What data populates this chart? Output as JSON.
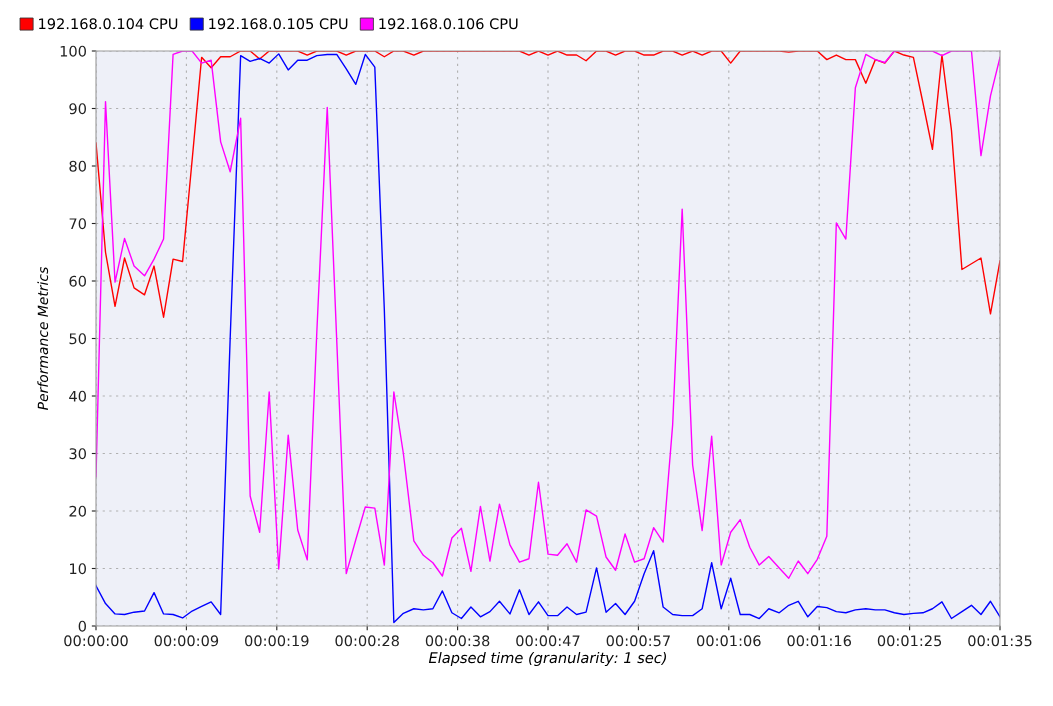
{
  "chart_data": {
    "type": "line",
    "xlabel": "Elapsed time (granularity: 1 sec)",
    "ylabel": "Performance Metrics",
    "x": [
      0,
      1,
      2,
      3,
      4,
      5.1,
      6.1,
      7.1,
      8.1,
      9.1,
      10.1,
      11.1,
      12.1,
      13.1,
      14.1,
      15.2,
      16.2,
      17.2,
      18.2,
      19.2,
      20.2,
      21.2,
      22.2,
      23.2,
      24.3,
      25.3,
      26.3,
      27.3,
      28.3,
      29.3,
      30.3,
      31.3,
      32.3,
      33.4,
      34.4,
      35.4,
      36.4,
      37.4,
      38.4,
      39.4,
      40.4,
      41.4,
      42.4,
      43.5,
      44.5,
      45.5,
      46.5,
      47.5,
      48.5,
      49.5,
      50.5,
      51.5,
      52.6,
      53.6,
      54.6,
      55.6,
      56.6,
      57.6,
      58.6,
      59.6,
      60.6,
      61.6,
      62.7,
      63.7,
      64.7,
      65.7,
      66.7,
      67.7,
      68.7,
      69.7,
      70.7,
      71.8,
      72.8,
      73.8,
      74.8,
      75.8,
      76.8,
      77.8,
      78.8,
      79.8,
      80.9,
      81.9,
      82.9,
      83.9,
      84.9,
      85.9,
      86.9,
      87.9,
      88.9,
      89.9,
      91.0,
      92.0,
      93.0,
      94.0,
      95.0
    ],
    "series": [
      {
        "name": "192.168.0.104 CPU",
        "color": "#ff0000",
        "values": [
          84,
          65,
          55.6,
          64,
          58.8,
          57.6,
          62.6,
          53.7,
          63.8,
          63.4,
          81,
          98.9,
          97.1,
          99,
          99,
          100,
          100,
          98.6,
          100,
          100,
          100,
          100,
          99.3,
          100,
          100,
          100,
          99.3,
          100,
          100,
          100,
          99,
          100,
          100,
          99.3,
          100,
          100,
          100,
          100,
          100,
          100,
          100,
          100,
          100,
          100,
          100,
          99.3,
          100,
          99.3,
          100,
          99.3,
          99.3,
          98.3,
          100,
          100,
          99.3,
          100,
          100,
          99.3,
          99.3,
          100,
          100,
          99.3,
          100,
          99.3,
          100,
          100,
          97.9,
          100,
          100,
          100,
          100,
          100,
          99.8,
          100,
          100,
          100,
          98.5,
          99.3,
          98.5,
          98.5,
          94.4,
          98.5,
          97.9,
          100,
          99.3,
          98.9,
          91,
          82.9,
          99.3,
          86.2,
          62,
          63,
          64,
          54.3,
          63.5
        ]
      },
      {
        "name": "192.168.0.105 CPU",
        "color": "#0000ff",
        "values": [
          7.0,
          3.9,
          2.1,
          2.0,
          2.4,
          2.6,
          5.8,
          2.1,
          2.0,
          1.4,
          2.6,
          3.4,
          4.2,
          2.0,
          50,
          99.2,
          98.2,
          98.7,
          97.9,
          99.5,
          96.7,
          98.4,
          98.4,
          99.2,
          99.4,
          99.4,
          96.9,
          94.2,
          99.4,
          97.2,
          55,
          0.6,
          2.2,
          3.0,
          2.8,
          3.0,
          6.1,
          2.3,
          1.3,
          3.3,
          1.6,
          2.5,
          4.3,
          2.1,
          6.3,
          2.0,
          4.2,
          1.8,
          1.8,
          3.3,
          2.0,
          2.4,
          10.1,
          2.4,
          3.9,
          2.0,
          4.3,
          9.1,
          13.1,
          3.3,
          2.0,
          1.8,
          1.8,
          3.0,
          11.0,
          3.0,
          8.3,
          2.0,
          2.0,
          1.3,
          3.0,
          2.3,
          3.6,
          4.3,
          1.6,
          3.4,
          3.2,
          2.5,
          2.3,
          2.8,
          3.0,
          2.8,
          2.8,
          2.3,
          2.0,
          2.2,
          2.3,
          3.0,
          4.2,
          1.3,
          2.5,
          3.6,
          2.0,
          4.3,
          1.6
        ]
      },
      {
        "name": "192.168.0.106 CPU",
        "color": "#ff00ff",
        "values": [
          26,
          91.2,
          59.8,
          67.4,
          62.6,
          60.9,
          63.8,
          67.3,
          99.4,
          100,
          100,
          97.9,
          98.4,
          84.2,
          79,
          88.3,
          22.6,
          16.3,
          40.7,
          9.9,
          33.2,
          16.7,
          11.5,
          50.9,
          90.2,
          49.6,
          9.1,
          15.0,
          20.7,
          20.5,
          10.6,
          40.7,
          30,
          14.8,
          12.3,
          11.0,
          8.7,
          15.3,
          17.0,
          9.5,
          20.8,
          11.3,
          21.2,
          14.1,
          11.1,
          11.7,
          25.0,
          12.5,
          12.3,
          14.3,
          11.1,
          20.2,
          19.1,
          12.0,
          9.7,
          16.0,
          11.1,
          11.7,
          17.1,
          14.6,
          35,
          72.5,
          28.0,
          16.6,
          33.0,
          10.6,
          16.3,
          18.5,
          13.7,
          10.6,
          12.1,
          10.1,
          8.3,
          11.3,
          9.1,
          11.6,
          15.6,
          70.1,
          67.3,
          93.6,
          99.4,
          98.5,
          98.0,
          100,
          100,
          100,
          100,
          100,
          99.2,
          100,
          100,
          100,
          81.8,
          92.2,
          98.9
        ]
      }
    ],
    "xlim": [
      0,
      95
    ],
    "xticks": [
      {
        "value": 0,
        "label": "00:00:00"
      },
      {
        "value": 9.5,
        "label": "00:00:09"
      },
      {
        "value": 19,
        "label": "00:00:19"
      },
      {
        "value": 28.5,
        "label": "00:00:28"
      },
      {
        "value": 38,
        "label": "00:00:38"
      },
      {
        "value": 47.5,
        "label": "00:00:47"
      },
      {
        "value": 57,
        "label": "00:00:57"
      },
      {
        "value": 66.5,
        "label": "00:01:06"
      },
      {
        "value": 76,
        "label": "00:01:16"
      },
      {
        "value": 85.5,
        "label": "00:01:25"
      },
      {
        "value": 95,
        "label": "00:01:35"
      }
    ],
    "ylim": [
      0,
      100
    ],
    "yticks": [
      0,
      10,
      20,
      30,
      40,
      50,
      60,
      70,
      80,
      90,
      100
    ],
    "grid": true,
    "legend": "top left",
    "marker": "none",
    "line_style": "solid"
  }
}
